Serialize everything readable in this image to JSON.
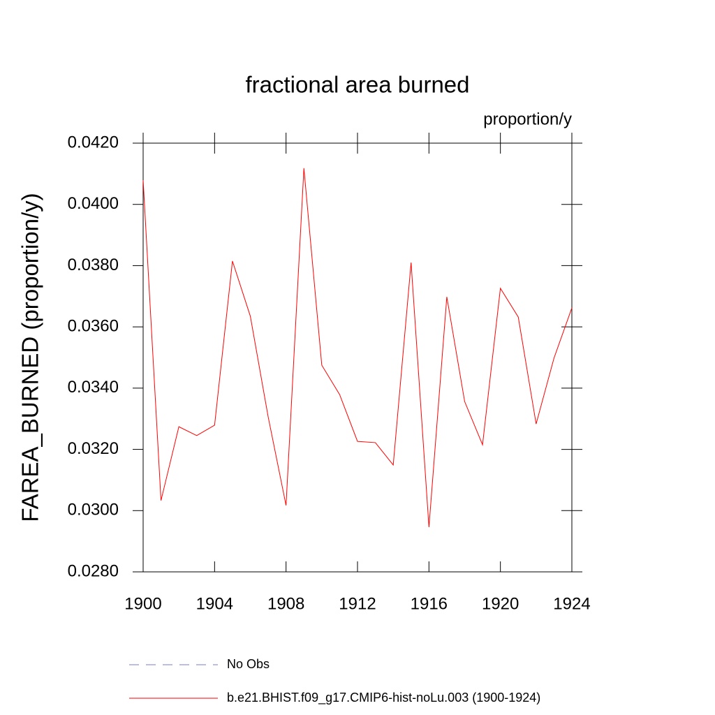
{
  "chart_data": {
    "type": "line",
    "title": "fractional area burned",
    "subtitle": "proportion/y",
    "ylabel": "FAREA_BURNED  (proportion/y)",
    "x": [
      1900,
      1901,
      1902,
      1903,
      1904,
      1905,
      1906,
      1907,
      1908,
      1909,
      1910,
      1911,
      1912,
      1913,
      1914,
      1915,
      1916,
      1917,
      1918,
      1919,
      1920,
      1921,
      1922,
      1923,
      1924
    ],
    "series": [
      {
        "name": "No Obs",
        "color": "#7a7ac8",
        "dashed": true,
        "values": [
          null,
          null,
          null,
          null,
          null,
          null,
          null,
          null,
          null,
          null,
          null,
          null,
          null,
          null,
          null,
          null,
          null,
          null,
          null,
          null,
          null,
          null,
          null,
          null,
          null
        ]
      },
      {
        "name": "b.e21.BHIST.f09_g17.CMIP6-hist-noLu.003 (1900-1924)",
        "color": "#ff0000",
        "dashed": false,
        "values": [
          0.04079,
          0.03033,
          0.03274,
          0.03245,
          0.03279,
          0.03815,
          0.03635,
          0.03306,
          0.03017,
          0.04118,
          0.03475,
          0.03379,
          0.03226,
          0.03222,
          0.03149,
          0.0381,
          0.02946,
          0.03698,
          0.03356,
          0.03215,
          0.03726,
          0.03632,
          0.03283,
          0.03498,
          0.03662
        ]
      }
    ],
    "xlim": [
      1900,
      1924
    ],
    "xticks": [
      1900,
      1904,
      1908,
      1912,
      1916,
      1920,
      1924
    ],
    "ylim": [
      0.028,
      0.042
    ],
    "yticks": [
      {
        "value": 0.028,
        "label": "0.0280"
      },
      {
        "value": 0.03,
        "label": "0.0300"
      },
      {
        "value": 0.032,
        "label": "0.0320"
      },
      {
        "value": 0.034,
        "label": "0.0340"
      },
      {
        "value": 0.036,
        "label": "0.0360"
      },
      {
        "value": 0.038,
        "label": "0.0380"
      },
      {
        "value": 0.04,
        "label": "0.0400"
      },
      {
        "value": 0.042,
        "label": "0.0420"
      }
    ],
    "grid": false
  }
}
